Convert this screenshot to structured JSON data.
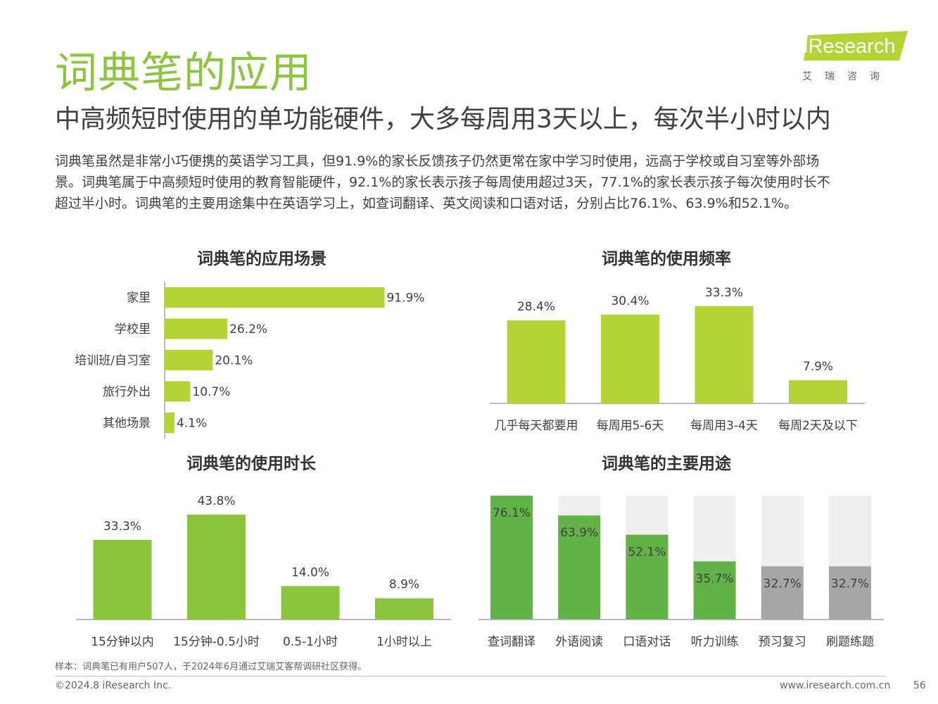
{
  "header": {
    "title": "词典笔的应用",
    "subtitle": "中高频短时使用的单功能硬件，大多每周用3天以上，每次半小时以内",
    "intro": [
      "词典笔虽然是非常小巧便携的英语学习工具，但91.9%的家长反馈孩子仍然更常在家中学习时使用，远高于学校或自习室等外部场",
      "景。词典笔属于中高频短时使用的教育智能硬件，92.1%的家长表示孩子每周使用超过3天，77.1%的家长表示孩子每次使用时长不",
      "超过半小时。词典笔的主要用途集中在英语学习上，如查词翻译、英文阅读和口语对话，分别占比76.1%、63.9%和52.1%。"
    ]
  },
  "logo": {
    "word": "iResearch",
    "cn": "艾瑞咨询"
  },
  "colors": {
    "green": "#b4d334",
    "dark_green": "#62b247",
    "light_green": "#8cc63f",
    "gray_bg": "#efefef",
    "gray_bar": "#a6a6a6"
  },
  "chart_data": [
    {
      "id": "scene",
      "type": "bar",
      "orientation": "horizontal",
      "title": "词典笔的应用场景",
      "categories": [
        "家里",
        "学校里",
        "培训班/自习室",
        "旅行外出",
        "其他场景"
      ],
      "values": [
        91.9,
        26.2,
        20.1,
        10.7,
        4.1
      ],
      "labels": [
        "91.9%",
        "26.2%",
        "20.1%",
        "10.7%",
        "4.1%"
      ],
      "xlim": [
        0,
        100
      ]
    },
    {
      "id": "frequency",
      "type": "bar",
      "title": "词典笔的使用频率",
      "categories": [
        "几乎每天都要用",
        "每周用5-6天",
        "每周用3-4天",
        "每周2天及以下"
      ],
      "values": [
        28.4,
        30.4,
        33.3,
        7.9
      ],
      "labels": [
        "28.4%",
        "30.4%",
        "33.3%",
        "7.9%"
      ],
      "ylim": [
        0,
        40
      ]
    },
    {
      "id": "duration",
      "type": "bar",
      "title": "词典笔的使用时长",
      "categories": [
        "15分钟以内",
        "15分钟-0.5小时",
        "0.5-1小时",
        "1小时以上"
      ],
      "values": [
        33.3,
        43.8,
        14.0,
        8.9
      ],
      "labels": [
        "33.3%",
        "43.8%",
        "14.0%",
        "8.9%"
      ],
      "ylim": [
        0,
        50
      ]
    },
    {
      "id": "usage",
      "type": "bar",
      "stacked_background": true,
      "title": "词典笔的主要用途",
      "categories": [
        "查词翻译",
        "外语阅读",
        "口语对话",
        "听力训练",
        "预习复习",
        "刷题练题"
      ],
      "values": [
        76.1,
        63.9,
        52.1,
        35.7,
        32.7,
        32.7
      ],
      "labels": [
        "76.1%",
        "63.9%",
        "52.1%",
        "35.7%",
        "32.7%",
        "32.7%"
      ],
      "highlight": [
        true,
        true,
        true,
        true,
        false,
        false
      ],
      "ylim": [
        0,
        76.1
      ]
    }
  ],
  "footer": {
    "source": "样本：词典笔已有用户507人，于2024年6月通过艾瑞艾客帮调研社区获得。",
    "copyright": "©2024.8 iResearch Inc.",
    "website": "www.iresearch.com.cn",
    "page": "56"
  }
}
